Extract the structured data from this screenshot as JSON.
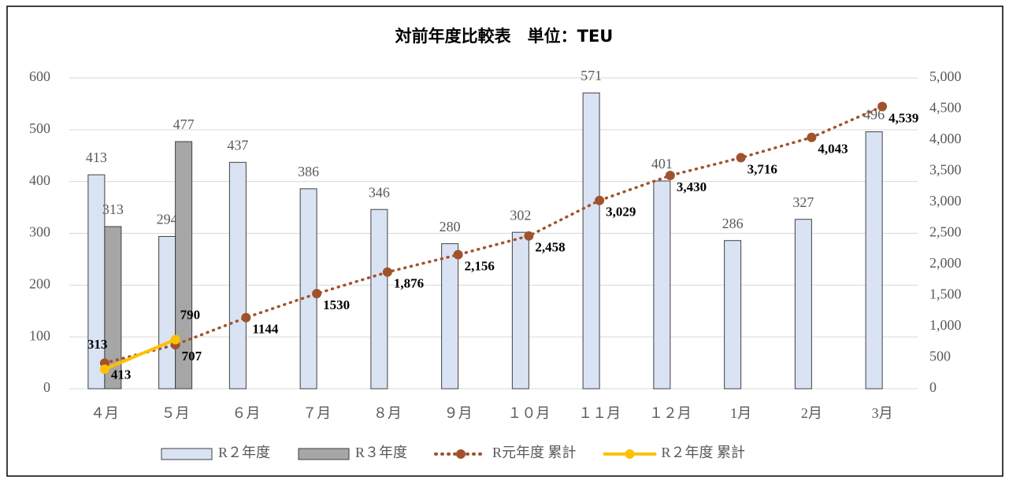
{
  "chart_data": {
    "type": "bar_line",
    "title": "対前年度比較表　単位：TEU",
    "categories": [
      "４月",
      "５月",
      "６月",
      "７月",
      "８月",
      "９月",
      "１０月",
      "１１月",
      "１２月",
      "1月",
      "2月",
      "3月"
    ],
    "series": [
      {
        "name": "R２年度",
        "color": "#dae3f3",
        "type": "bar",
        "values": [
          413,
          294,
          437,
          386,
          346,
          280,
          302,
          571,
          401,
          286,
          327,
          496
        ]
      },
      {
        "name": "R３年度",
        "color": "#a6a6a6",
        "type": "bar",
        "values": [
          313,
          477,
          null,
          null,
          null,
          null,
          null,
          null,
          null,
          null,
          null,
          null
        ]
      },
      {
        "name": "R元年度 累計",
        "color": "#a0522d",
        "type": "line",
        "dotted": true,
        "axis": "y2",
        "values": [
          413,
          707,
          1144,
          1530,
          1876,
          2156,
          2458,
          3029,
          3430,
          3716,
          4043,
          4539
        ],
        "value_labels": [
          "413",
          "707",
          "1144",
          "1530",
          "1,876",
          "2,156",
          "2,458",
          "3,029",
          "3,430",
          "3,716",
          "4,043",
          "4,539"
        ]
      },
      {
        "name": "R２年度 累計",
        "color": "#ffc000",
        "type": "line",
        "axis": "y2",
        "values": [
          313,
          790,
          null,
          null,
          null,
          null,
          null,
          null,
          null,
          null,
          null,
          null
        ]
      }
    ],
    "ylim": [
      0,
      600
    ],
    "yticks": [
      0,
      100,
      200,
      300,
      400,
      500,
      600
    ],
    "y2lim": [
      0,
      5000
    ],
    "y2ticks": [
      0,
      500,
      {
        "value": 1000,
        "label": "1,000"
      },
      {
        "value": 1500,
        "label": "1,500"
      },
      {
        "value": 2000,
        "label": "2,000"
      },
      {
        "value": 2500,
        "label": "2,500"
      },
      {
        "value": 3000,
        "label": "3,000"
      },
      {
        "value": 3500,
        "label": "3,500"
      },
      {
        "value": 4000,
        "label": "4,000"
      },
      {
        "value": 4500,
        "label": "4,500"
      },
      {
        "value": 5000,
        "label": "5,000"
      }
    ],
    "grid": true,
    "legend": "bottom"
  }
}
